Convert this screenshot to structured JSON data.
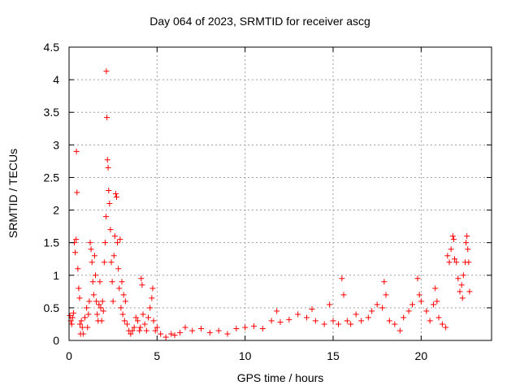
{
  "chart_data": {
    "type": "scatter",
    "title": "Day 064 of 2023, SRMTID for receiver ascg",
    "xlabel": "GPS time / hours",
    "ylabel": "SRMTID / TECUs",
    "xlim": [
      0,
      24
    ],
    "ylim": [
      0,
      4.5
    ],
    "xticks": [
      0,
      5,
      10,
      15,
      20
    ],
    "xtick_labels": [
      "0",
      "5",
      "10",
      "15",
      "20"
    ],
    "yticks": [
      0,
      0.5,
      1,
      1.5,
      2,
      2.5,
      3,
      3.5,
      4,
      4.5
    ],
    "ytick_labels": [
      "0",
      "0.5",
      "1",
      "1.5",
      "2",
      "2.5",
      "3",
      "3.5",
      "4",
      "4.5"
    ],
    "grid": true,
    "marker": "plus",
    "color": "#ff0000",
    "series": [
      {
        "name": "SRMTID",
        "points": [
          [
            0.05,
            0.38
          ],
          [
            0.1,
            0.3
          ],
          [
            0.15,
            0.25
          ],
          [
            0.2,
            0.35
          ],
          [
            0.25,
            0.42
          ],
          [
            0.3,
            1.5
          ],
          [
            0.35,
            1.35
          ],
          [
            0.4,
            1.55
          ],
          [
            0.42,
            2.9
          ],
          [
            0.45,
            2.27
          ],
          [
            0.5,
            1.1
          ],
          [
            0.55,
            0.8
          ],
          [
            0.6,
            0.65
          ],
          [
            0.62,
            0.25
          ],
          [
            0.65,
            0.1
          ],
          [
            0.7,
            0.3
          ],
          [
            0.75,
            0.2
          ],
          [
            0.8,
            0.1
          ],
          [
            0.9,
            0.35
          ],
          [
            1.0,
            0.5
          ],
          [
            1.05,
            0.2
          ],
          [
            1.1,
            0.4
          ],
          [
            1.15,
            0.6
          ],
          [
            1.2,
            1.5
          ],
          [
            1.25,
            1.4
          ],
          [
            1.3,
            1.2
          ],
          [
            1.35,
            0.9
          ],
          [
            1.4,
            0.7
          ],
          [
            1.45,
            1.3
          ],
          [
            1.5,
            1.0
          ],
          [
            1.55,
            0.6
          ],
          [
            1.6,
            0.4
          ],
          [
            1.65,
            0.3
          ],
          [
            1.7,
            0.55
          ],
          [
            1.75,
            0.9
          ],
          [
            1.8,
            0.5
          ],
          [
            1.85,
            0.3
          ],
          [
            1.9,
            0.6
          ],
          [
            1.95,
            0.45
          ],
          [
            2.0,
            1.2
          ],
          [
            2.05,
            1.5
          ],
          [
            2.1,
            1.9
          ],
          [
            2.12,
            4.13
          ],
          [
            2.15,
            3.42
          ],
          [
            2.18,
            2.77
          ],
          [
            2.22,
            2.65
          ],
          [
            2.25,
            2.3
          ],
          [
            2.3,
            2.1
          ],
          [
            2.35,
            1.7
          ],
          [
            2.4,
            1.2
          ],
          [
            2.45,
            0.9
          ],
          [
            2.5,
            0.6
          ],
          [
            2.55,
            1.3
          ],
          [
            2.6,
            1.6
          ],
          [
            2.65,
            2.25
          ],
          [
            2.7,
            2.2
          ],
          [
            2.75,
            1.5
          ],
          [
            2.8,
            1.1
          ],
          [
            2.85,
            0.8
          ],
          [
            2.9,
            1.55
          ],
          [
            2.95,
            0.5
          ],
          [
            3.0,
            0.9
          ],
          [
            3.05,
            0.4
          ],
          [
            3.1,
            0.7
          ],
          [
            3.15,
            0.3
          ],
          [
            3.2,
            0.6
          ],
          [
            3.3,
            0.25
          ],
          [
            3.4,
            0.15
          ],
          [
            3.5,
            0.1
          ],
          [
            3.6,
            0.15
          ],
          [
            3.7,
            0.2
          ],
          [
            3.8,
            0.35
          ],
          [
            3.9,
            0.3
          ],
          [
            4.0,
            0.15
          ],
          [
            4.05,
            0.2
          ],
          [
            4.1,
            0.95
          ],
          [
            4.15,
            0.85
          ],
          [
            4.2,
            0.4
          ],
          [
            4.3,
            0.25
          ],
          [
            4.4,
            0.15
          ],
          [
            4.5,
            0.35
          ],
          [
            4.6,
            0.5
          ],
          [
            4.7,
            0.65
          ],
          [
            4.75,
            0.8
          ],
          [
            4.8,
            0.3
          ],
          [
            4.9,
            0.15
          ],
          [
            5.0,
            0.2
          ],
          [
            5.2,
            0.1
          ],
          [
            5.5,
            0.05
          ],
          [
            5.8,
            0.1
          ],
          [
            6.0,
            0.08
          ],
          [
            6.3,
            0.12
          ],
          [
            6.6,
            0.2
          ],
          [
            7.0,
            0.15
          ],
          [
            7.5,
            0.18
          ],
          [
            8.0,
            0.12
          ],
          [
            8.5,
            0.15
          ],
          [
            9.0,
            0.1
          ],
          [
            9.5,
            0.18
          ],
          [
            10.0,
            0.2
          ],
          [
            10.5,
            0.22
          ],
          [
            11.0,
            0.18
          ],
          [
            11.5,
            0.3
          ],
          [
            11.8,
            0.45
          ],
          [
            12.0,
            0.28
          ],
          [
            12.5,
            0.32
          ],
          [
            13.0,
            0.4
          ],
          [
            13.5,
            0.35
          ],
          [
            13.8,
            0.48
          ],
          [
            14.0,
            0.3
          ],
          [
            14.5,
            0.25
          ],
          [
            14.8,
            0.55
          ],
          [
            15.0,
            0.3
          ],
          [
            15.3,
            0.25
          ],
          [
            15.5,
            0.95
          ],
          [
            15.6,
            0.7
          ],
          [
            15.8,
            0.3
          ],
          [
            16.0,
            0.25
          ],
          [
            16.3,
            0.4
          ],
          [
            16.6,
            0.3
          ],
          [
            17.0,
            0.35
          ],
          [
            17.2,
            0.45
          ],
          [
            17.5,
            0.55
          ],
          [
            17.8,
            0.5
          ],
          [
            17.9,
            0.9
          ],
          [
            18.0,
            0.7
          ],
          [
            18.2,
            0.3
          ],
          [
            18.5,
            0.25
          ],
          [
            18.8,
            0.15
          ],
          [
            19.0,
            0.35
          ],
          [
            19.3,
            0.45
          ],
          [
            19.5,
            0.55
          ],
          [
            19.8,
            0.95
          ],
          [
            19.9,
            0.7
          ],
          [
            20.0,
            0.6
          ],
          [
            20.3,
            0.45
          ],
          [
            20.5,
            0.3
          ],
          [
            20.7,
            0.55
          ],
          [
            20.8,
            0.8
          ],
          [
            20.9,
            0.6
          ],
          [
            21.0,
            0.35
          ],
          [
            21.2,
            0.25
          ],
          [
            21.4,
            0.2
          ],
          [
            21.5,
            1.3
          ],
          [
            21.6,
            1.2
          ],
          [
            21.7,
            1.4
          ],
          [
            21.8,
            1.6
          ],
          [
            21.85,
            1.55
          ],
          [
            21.9,
            1.25
          ],
          [
            22.0,
            1.2
          ],
          [
            22.1,
            0.95
          ],
          [
            22.2,
            0.75
          ],
          [
            22.3,
            0.85
          ],
          [
            22.35,
            0.65
          ],
          [
            22.4,
            1.0
          ],
          [
            22.5,
            1.2
          ],
          [
            22.55,
            1.5
          ],
          [
            22.6,
            1.6
          ],
          [
            22.65,
            1.4
          ],
          [
            22.7,
            1.2
          ],
          [
            22.75,
            0.75
          ]
        ]
      }
    ]
  }
}
